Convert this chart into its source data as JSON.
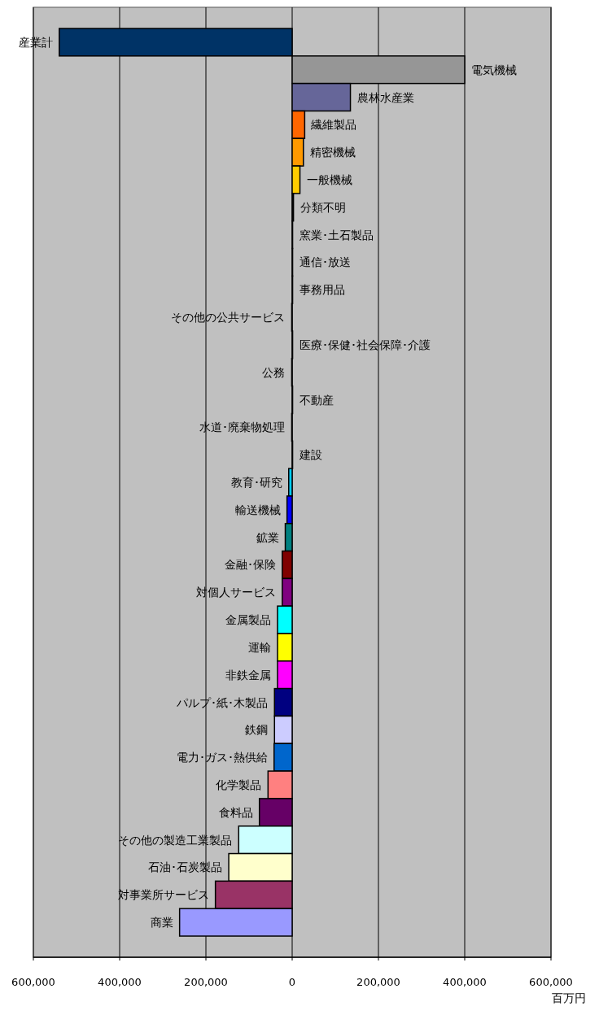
{
  "chart_data": {
    "type": "bar",
    "orientation": "horizontal",
    "xlabel": "百万円",
    "categories": [
      "産業計",
      "電気機械",
      "農林水産業",
      "繊維製品",
      "精密機械",
      "一般機械",
      "分類不明",
      "窯業･土石製品",
      "通信･放送",
      "事務用品",
      "その他の公共サービス",
      "医療･保健･社会保障･介護",
      "公務",
      "不動産",
      "水道･廃棄物処理",
      "建設",
      "教育･研究",
      "輸送機械",
      "鉱業",
      "金融･保険",
      "対個人サービス",
      "金属製品",
      "運輸",
      "非鉄金属",
      "パルプ･紙･木製品",
      "鉄鋼",
      "電力･ガス･熱供給",
      "化学製品",
      "食料品",
      "その他の製造工業製品",
      "石油･石炭製品",
      "対事業所サービス",
      "商業"
    ],
    "values": [
      -540000,
      400000,
      135000,
      29000,
      26000,
      18000,
      3000,
      1000,
      1000,
      1000,
      -1000,
      1000,
      -1000,
      1000,
      -1000,
      1000,
      -8000,
      -12000,
      -16000,
      -23000,
      -23000,
      -34000,
      -34000,
      -34000,
      -41000,
      -41000,
      -42000,
      -56000,
      -76000,
      -124000,
      -147000,
      -178000,
      -261000
    ],
    "colors": [
      "#003366",
      "#969696",
      "#666699",
      "#ff6600",
      "#ff9900",
      "#ffcc00",
      "#000000",
      "#993300",
      "#339966",
      "#333399",
      "#808000",
      "#ff99cc",
      "#3366ff",
      "#99cc00",
      "#33cccc",
      "#cc99ff",
      "#00ccff",
      "#0000ff",
      "#008080",
      "#800000",
      "#800080",
      "#00ffff",
      "#ffff00",
      "#ff00ff",
      "#000080",
      "#ccccff",
      "#0066cc",
      "#ff8080",
      "#660066",
      "#ccffff",
      "#ffffcc",
      "#993366",
      "#9999ff"
    ],
    "xlim": [
      -600000,
      600000
    ],
    "xticks": [
      {
        "value": -600000,
        "label": "600,000"
      },
      {
        "value": -400000,
        "label": "400,000"
      },
      {
        "value": -200000,
        "label": "200,000"
      },
      0,
      {
        "value": 200000,
        "label": "200,000"
      },
      {
        "value": 400000,
        "label": "400,000"
      },
      {
        "value": 600000,
        "label": "600,000"
      }
    ],
    "grid": "x"
  }
}
